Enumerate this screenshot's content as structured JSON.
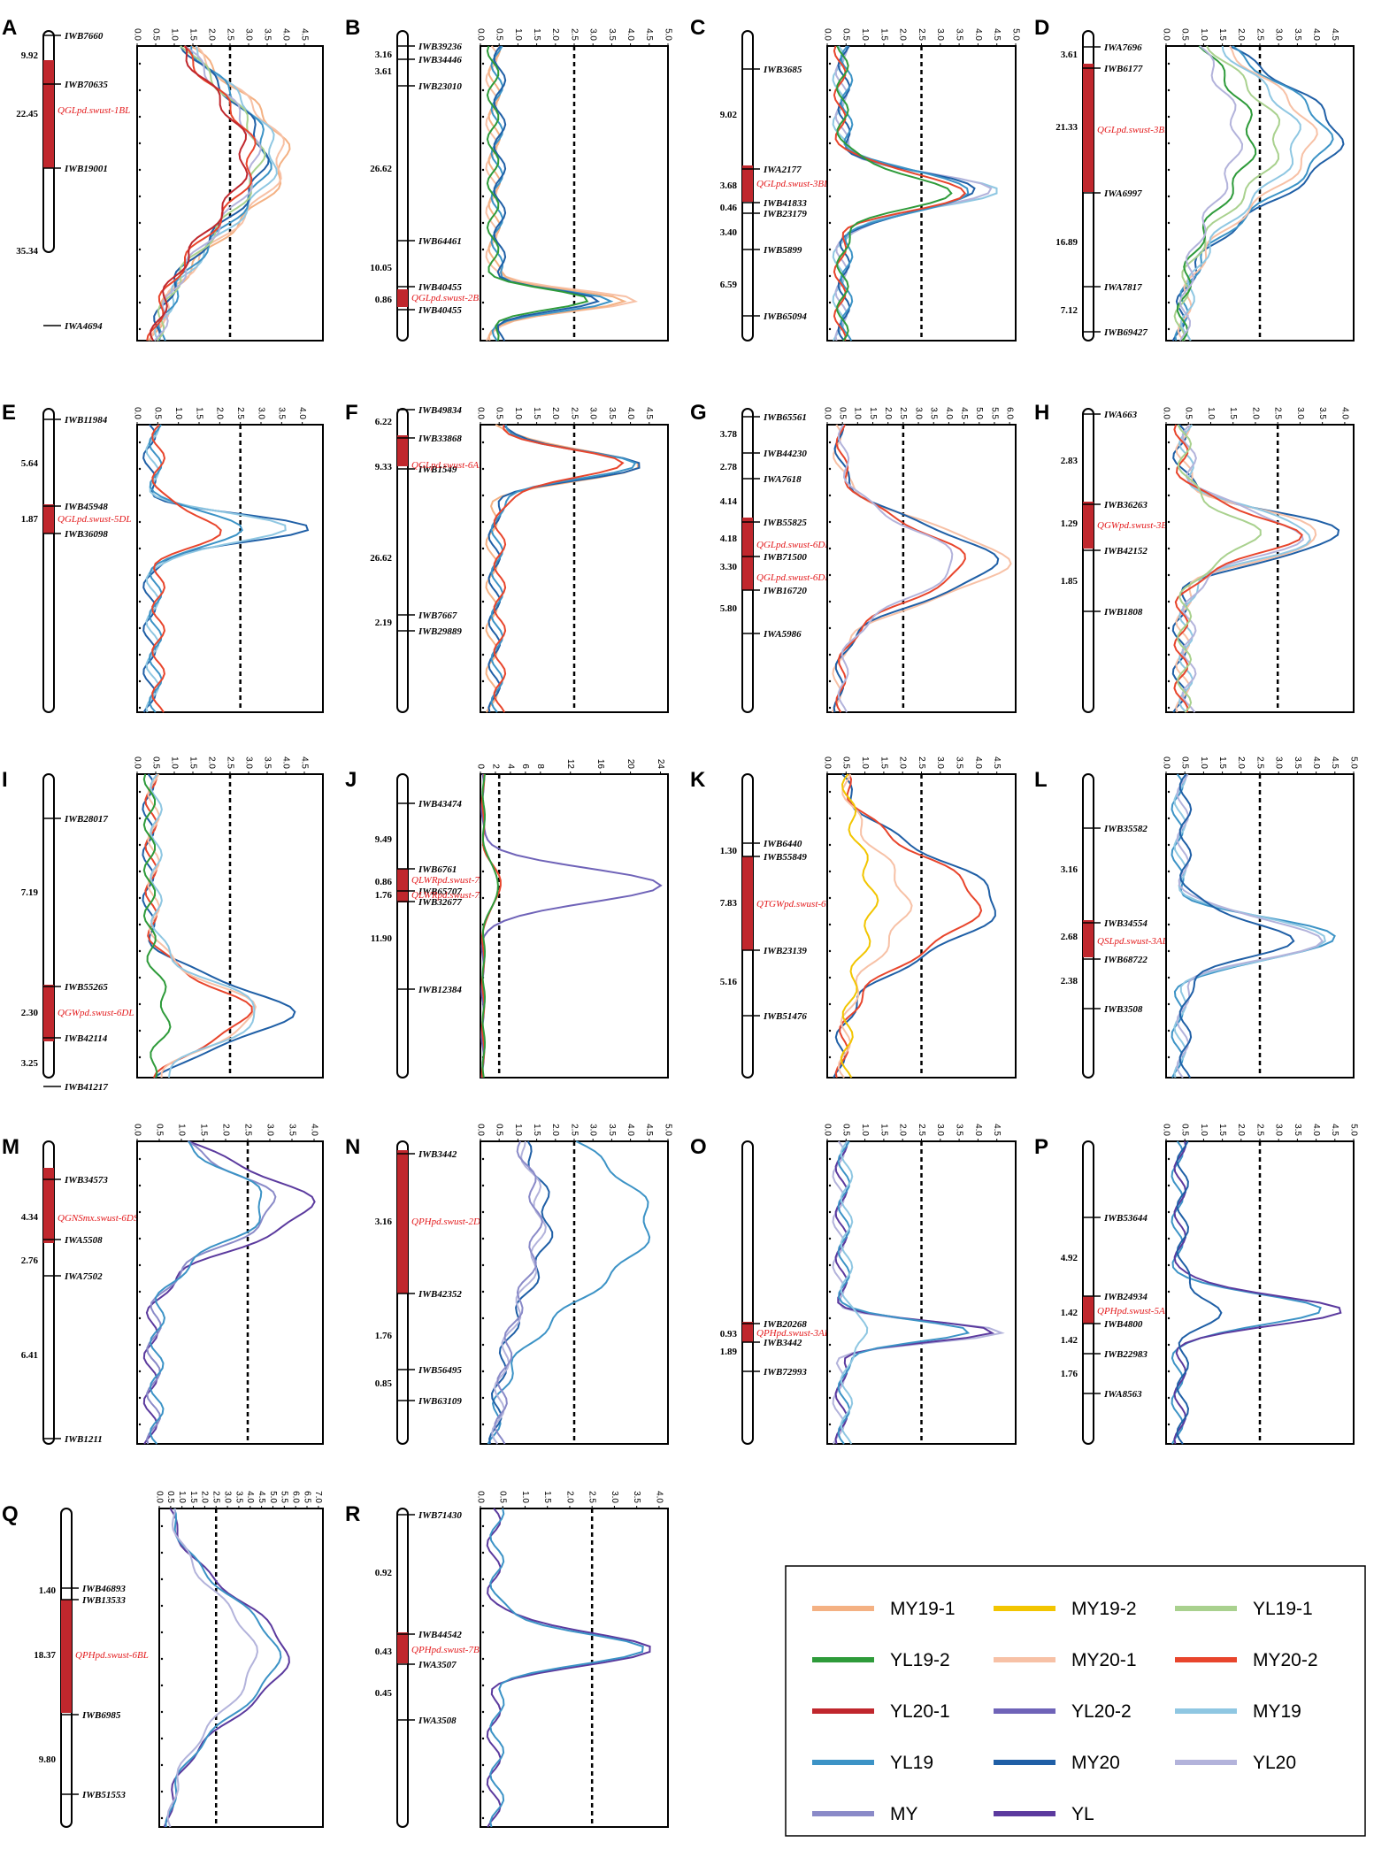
{
  "colors": {
    "MY19-1": "#f4b183",
    "MY19-2": "#f2c500",
    "YL19-1": "#a9d18e",
    "YL19-2": "#2e9b3a",
    "MY20-1": "#f7c1a6",
    "MY20-2": "#e8452c",
    "YL20-1": "#c0272d",
    "YL20-2": "#6f63b8",
    "MY19": "#8fc7e2",
    "YL19": "#3c93c6",
    "MY20": "#1f5fa6",
    "YL20": "#b3b3db",
    "MY": "#8a8ac8",
    "YL": "#5b3a9e",
    "qtl_bar": "#c0272d",
    "threshold": "#000000"
  },
  "legend": {
    "items": [
      "MY19-1",
      "MY19-2",
      "YL19-1",
      "YL19-2",
      "MY20-1",
      "MY20-2",
      "YL20-1",
      "YL20-2",
      "MY19",
      "YL19",
      "MY20",
      "YL20",
      "MY",
      "YL"
    ]
  },
  "chart_data": [
    {
      "panel": "A",
      "type": "line",
      "xticks": [
        "0.0",
        "0.5",
        "1.0",
        "1.5",
        "2.0",
        "2.5",
        "3.0",
        "3.5",
        "4.0",
        "4.5"
      ],
      "xlim": [
        0,
        5
      ],
      "threshold": 2.5,
      "distances": [
        "9.92",
        "22.45",
        "35.34"
      ],
      "markers": [
        "IWB7660",
        "IWB70635",
        "IWB19001",
        "IWA4694"
      ],
      "qtl": [
        "QGLpd.swust-1BL"
      ],
      "series": [
        {
          "name": "MY19-1",
          "peak": 4.0
        },
        {
          "name": "MY20-1",
          "peak": 3.9
        },
        {
          "name": "MY19",
          "peak": 3.7
        },
        {
          "name": "YL19",
          "peak": 3.5
        },
        {
          "name": "MY20",
          "peak": 3.4
        },
        {
          "name": "YL19-1",
          "peak": 3.3
        },
        {
          "name": "YL20",
          "peak": 3.2
        },
        {
          "name": "MY20-2",
          "peak": 3.1
        },
        {
          "name": "YL20-1",
          "peak": 2.9
        }
      ]
    },
    {
      "panel": "B",
      "type": "line",
      "xticks": [
        "0.0",
        "0.5",
        "1.0",
        "1.5",
        "2.0",
        "2.5",
        "3.0",
        "3.5",
        "4.0",
        "4.5",
        "5.0"
      ],
      "xlim": [
        0,
        5
      ],
      "threshold": 2.5,
      "distances": [
        "3.16",
        "3.61",
        "26.62",
        "10.05",
        "0.86"
      ],
      "markers": [
        "IWB39236",
        "IWB34446",
        "IWB23010",
        "IWB64461",
        "IWB40455",
        "IWB40455"
      ],
      "qtl": [
        "QGLpd.swust-2BL"
      ],
      "series": [
        {
          "name": "MY20-1",
          "peak": 4.3
        },
        {
          "name": "MY19-1",
          "peak": 3.9
        },
        {
          "name": "YL19",
          "peak": 3.4
        },
        {
          "name": "MY20",
          "peak": 3.0
        },
        {
          "name": "YL19-2",
          "peak": 2.8
        }
      ]
    },
    {
      "panel": "C",
      "type": "line",
      "xticks": [
        "0.0",
        "0.5",
        "1.0",
        "1.5",
        "2.0",
        "2.5",
        "3.0",
        "3.5",
        "4.0",
        "4.5",
        "5.0"
      ],
      "xlim": [
        0,
        5
      ],
      "threshold": 2.5,
      "distances": [
        "9.02",
        "3.68",
        "0.46",
        "3.40",
        "6.59"
      ],
      "markers": [
        "IWB3685",
        "IWA2177",
        "IWB41833",
        "IWB23179",
        "IWB5899",
        "IWB65094"
      ],
      "qtl": [
        "QGLpd.swust-3BL.1"
      ],
      "series": [
        {
          "name": "MY19",
          "peak": 4.4
        },
        {
          "name": "YL20",
          "peak": 4.3
        },
        {
          "name": "MY20",
          "peak": 4.0
        },
        {
          "name": "YL19",
          "peak": 3.9
        },
        {
          "name": "MY20-2",
          "peak": 3.7
        },
        {
          "name": "YL19-2",
          "peak": 3.2
        }
      ]
    },
    {
      "panel": "D",
      "type": "line",
      "xticks": [
        "0.0",
        "0.5",
        "1.0",
        "1.5",
        "2.0",
        "2.5",
        "3.0",
        "3.5",
        "4.0",
        "4.5"
      ],
      "xlim": [
        0,
        5
      ],
      "threshold": 2.5,
      "distances": [
        "3.61",
        "21.33",
        "16.89",
        "7.12"
      ],
      "markers": [
        "IWA7696",
        "IWB6177",
        "IWA6997",
        "IWA7817",
        "IWB69427"
      ],
      "qtl": [
        "QGLpd.swust-3BL.2"
      ],
      "series": [
        {
          "name": "MY20",
          "peak": 4.6
        },
        {
          "name": "YL19",
          "peak": 4.3
        },
        {
          "name": "MY20-1",
          "peak": 3.9
        },
        {
          "name": "MY19",
          "peak": 3.5
        },
        {
          "name": "YL19-1",
          "peak": 3.0
        },
        {
          "name": "YL19-2",
          "peak": 2.3
        },
        {
          "name": "YL20",
          "peak": 1.9
        }
      ]
    },
    {
      "panel": "E",
      "type": "line",
      "xticks": [
        "0.0",
        "0.5",
        "1.0",
        "1.5",
        "2.0",
        "2.5",
        "3.0",
        "3.5",
        "4.0"
      ],
      "xlim": [
        0,
        4.5
      ],
      "threshold": 2.5,
      "distances": [
        "5.64",
        "1.87"
      ],
      "markers": [
        "IWB11984",
        "IWB45948",
        "IWB36098"
      ],
      "qtl": [
        "QGLpd.swust-5DL"
      ],
      "series": [
        {
          "name": "MY20",
          "peak": 4.1
        },
        {
          "name": "MY19",
          "peak": 3.7
        },
        {
          "name": "YL19",
          "peak": 2.7
        },
        {
          "name": "MY20-2",
          "peak": 2.1
        }
      ]
    },
    {
      "panel": "F",
      "type": "line",
      "xticks": [
        "0.0",
        "0.5",
        "1.0",
        "1.5",
        "2.0",
        "2.5",
        "3.0",
        "3.5",
        "4.0",
        "4.5"
      ],
      "xlim": [
        0,
        5
      ],
      "threshold": 2.5,
      "distances": [
        "6.22",
        "9.33",
        "26.62",
        "2.19"
      ],
      "markers": [
        "IWB49834",
        "IWB33868",
        "IWB1549",
        "IWB7667",
        "IWB29889"
      ],
      "qtl": [
        "QGLpd.swust-6AL"
      ],
      "series": [
        {
          "name": "MY19-1",
          "peak": 4.3
        },
        {
          "name": "MY20",
          "peak": 4.2
        },
        {
          "name": "YL19",
          "peak": 4.0
        },
        {
          "name": "MY20-2",
          "peak": 3.7
        }
      ]
    },
    {
      "panel": "G",
      "type": "line",
      "xticks": [
        "0.0",
        "0.5",
        "1.0",
        "1.5",
        "2.0",
        "2.5",
        "3.0",
        "3.5",
        "4.0",
        "4.5",
        "5.0",
        "5.5",
        "6.0"
      ],
      "xlim": [
        0,
        6.2
      ],
      "threshold": 2.5,
      "distances": [
        "3.78",
        "2.78",
        "4.14",
        "4.18",
        "3.30",
        "5.80"
      ],
      "markers": [
        "IWB65561",
        "IWB44230",
        "IWA7618",
        "IWB55825",
        "IWB71500",
        "IWB16720",
        "IWA5986"
      ],
      "qtl": [
        "QGLpd.swust-6DL.1",
        "QGLpd.swust-6DL.2"
      ],
      "series": [
        {
          "name": "MY20-1",
          "peak": 5.9
        },
        {
          "name": "MY20",
          "peak": 5.5
        },
        {
          "name": "MY20-2",
          "peak": 4.5
        },
        {
          "name": "YL20",
          "peak": 4.2
        }
      ]
    },
    {
      "panel": "H",
      "type": "line",
      "xticks": [
        "0.0",
        "0.5",
        "1.0",
        "1.5",
        "2.0",
        "2.5",
        "3.0",
        "3.5",
        "4.0"
      ],
      "xlim": [
        0,
        4.2
      ],
      "threshold": 2.5,
      "distances": [
        "2.83",
        "1.29",
        "1.85"
      ],
      "markers": [
        "IWA663",
        "IWB36263",
        "IWB42152",
        "IWB1808"
      ],
      "qtl": [
        "QGWpd.swust-3BS"
      ],
      "series": [
        {
          "name": "MY20",
          "peak": 3.9
        },
        {
          "name": "MY20-1",
          "peak": 3.5
        },
        {
          "name": "MY19",
          "peak": 3.3
        },
        {
          "name": "YL20",
          "peak": 3.0
        },
        {
          "name": "MY20-2",
          "peak": 2.9
        },
        {
          "name": "YL19-1",
          "peak": 2.0
        }
      ]
    },
    {
      "panel": "I",
      "type": "line",
      "xticks": [
        "0.0",
        "0.5",
        "1.0",
        "1.5",
        "2.0",
        "2.5",
        "3.0",
        "3.5",
        "4.0",
        "4.5"
      ],
      "xlim": [
        0,
        5
      ],
      "threshold": 2.5,
      "distances": [
        "7.19",
        "2.30",
        "3.25"
      ],
      "markers": [
        "IWB28017",
        "IWB55265",
        "IWB42114",
        "IWB41217"
      ],
      "qtl": [
        "QGWpd.swust-6DL"
      ],
      "series": [
        {
          "name": "MY20",
          "peak": 4.1
        },
        {
          "name": "MY20-2",
          "peak": 3.0
        },
        {
          "name": "MY20-1",
          "peak": 3.2
        },
        {
          "name": "MY19",
          "peak": 3.3
        },
        {
          "name": "YL19-2",
          "peak": 0.8
        }
      ]
    },
    {
      "panel": "J",
      "type": "line",
      "xticks": [
        "0",
        "2",
        "4",
        "6",
        "8",
        "12",
        "16",
        "20",
        "24"
      ],
      "xlim": [
        0,
        25
      ],
      "threshold": 2.5,
      "distances": [
        "9.49",
        "0.86",
        "1.76",
        "11.90"
      ],
      "markers": [
        "IWB43474",
        "IWB6761",
        "IWB65707",
        "IWB32677",
        "IWB12384"
      ],
      "qtl": [
        "QLWRpd.swust-7AS.1",
        "QLWRpd.swust-7AL.2"
      ],
      "series": [
        {
          "name": "YL20-2",
          "peak": 24.0
        },
        {
          "name": "MY20-2",
          "peak": 2.8
        },
        {
          "name": "YL19-2",
          "peak": 2.5
        }
      ]
    },
    {
      "panel": "K",
      "type": "line",
      "xticks": [
        "0.0",
        "0.5",
        "1.0",
        "1.5",
        "2.0",
        "2.5",
        "3.0",
        "3.5",
        "4.0",
        "4.5"
      ],
      "xlim": [
        0,
        5
      ],
      "threshold": 2.5,
      "distances": [
        "1.30",
        "7.83",
        "5.16"
      ],
      "markers": [
        "IWB6440",
        "IWB55849",
        "IWB23139",
        "IWB51476"
      ],
      "qtl": [
        "QTGWpd.swust-6BS"
      ],
      "series": [
        {
          "name": "MY20",
          "peak": 4.5
        },
        {
          "name": "MY20-2",
          "peak": 4.0
        },
        {
          "name": "MY20-1",
          "peak": 2.1
        },
        {
          "name": "MY19-2",
          "peak": 1.2
        }
      ]
    },
    {
      "panel": "L",
      "type": "line",
      "xticks": [
        "0.0",
        "0.5",
        "1.0",
        "1.5",
        "2.0",
        "2.5",
        "3.0",
        "3.5",
        "4.0",
        "4.5",
        "5.0"
      ],
      "xlim": [
        0,
        5
      ],
      "threshold": 2.5,
      "distances": [
        "3.16",
        "2.68",
        "2.38"
      ],
      "markers": [
        "IWB35582",
        "IWB34554",
        "IWB68722",
        "IWB3508"
      ],
      "qtl": [
        "QSLpd.swust-3AL"
      ],
      "series": [
        {
          "name": "YL19",
          "peak": 4.6
        },
        {
          "name": "MY19",
          "peak": 4.4
        },
        {
          "name": "YL20",
          "peak": 4.2
        },
        {
          "name": "MY20",
          "peak": 3.3
        }
      ]
    },
    {
      "panel": "M",
      "type": "line",
      "xticks": [
        "0.0",
        "0.5",
        "1.0",
        "1.5",
        "2.0",
        "2.5",
        "3.0",
        "3.5",
        "4.0"
      ],
      "xlim": [
        0,
        4.2
      ],
      "threshold": 2.5,
      "distances": [
        "4.34",
        "2.76",
        "6.41"
      ],
      "markers": [
        "IWB34573",
        "IWA5508",
        "IWA7502",
        "IWB1211"
      ],
      "qtl": [
        "QGNSmx.swust-6DS"
      ],
      "series": [
        {
          "name": "YL",
          "peak": 3.9
        },
        {
          "name": "MY",
          "peak": 3.1
        },
        {
          "name": "YL19",
          "peak": 2.9
        }
      ]
    },
    {
      "panel": "N",
      "type": "line",
      "xticks": [
        "0.0",
        "0.5",
        "1.0",
        "1.5",
        "2.0",
        "2.5",
        "3.0",
        "3.5",
        "4.0",
        "4.5",
        "5.0"
      ],
      "xlim": [
        0,
        5
      ],
      "threshold": 2.5,
      "distances": [
        "3.16",
        "1.76",
        "0.85"
      ],
      "markers": [
        "IWB3442",
        "IWB42352",
        "IWB56495",
        "IWB63109"
      ],
      "qtl": [
        "QPHpd.swust-2DL"
      ],
      "series": [
        {
          "name": "YL19",
          "peak": 4.5
        },
        {
          "name": "MY20",
          "peak": 1.8
        },
        {
          "name": "YL20",
          "peak": 1.6
        },
        {
          "name": "MY",
          "peak": 1.5
        }
      ]
    },
    {
      "panel": "O",
      "type": "line",
      "xticks": [
        "0.0",
        "0.5",
        "1.0",
        "1.5",
        "2.0",
        "2.5",
        "3.0",
        "3.5",
        "4.0",
        "4.5"
      ],
      "xlim": [
        0,
        5
      ],
      "threshold": 2.5,
      "distances": [
        "0.93",
        "1.89"
      ],
      "markers": [
        "IWB20268",
        "IWB3442",
        "IWB72993"
      ],
      "qtl": [
        "QPHpd.swust-3AL"
      ],
      "series": [
        {
          "name": "YL20",
          "peak": 4.5
        },
        {
          "name": "YL",
          "peak": 4.3
        },
        {
          "name": "YL19",
          "peak": 3.8
        },
        {
          "name": "MY19",
          "peak": 1.2
        }
      ]
    },
    {
      "panel": "P",
      "type": "line",
      "xticks": [
        "0.0",
        "0.5",
        "1.0",
        "1.5",
        "2.0",
        "2.5",
        "3.0",
        "3.5",
        "4.0",
        "4.5",
        "5.0"
      ],
      "xlim": [
        0,
        5
      ],
      "threshold": 2.5,
      "distances": [
        "4.92",
        "1.42",
        "1.42",
        "1.76"
      ],
      "markers": [
        "IWB53644",
        "IWB24934",
        "IWB4800",
        "IWB22983",
        "IWA8563"
      ],
      "qtl": [
        "QPHpd.swust-5AL"
      ],
      "series": [
        {
          "name": "YL19",
          "peak": 4.3
        },
        {
          "name": "YL",
          "peak": 4.8
        },
        {
          "name": "MY20",
          "peak": 1.4
        }
      ]
    },
    {
      "panel": "Q",
      "type": "line",
      "xticks": [
        "0.0",
        "0.5",
        "1.0",
        "1.5",
        "2.0",
        "2.5",
        "3.0",
        "3.5",
        "4.0",
        "4.5",
        "5.0",
        "5.5",
        "6.0",
        "6.5",
        "7.0"
      ],
      "xlim": [
        0,
        7.2
      ],
      "threshold": 2.5,
      "distances": [
        "1.40",
        "18.37",
        "9.80"
      ],
      "markers": [
        "IWB46893",
        "IWB13533",
        "IWB6985",
        "IWB51553"
      ],
      "qtl": [
        "QPHpd.swust-6BL"
      ],
      "series": [
        {
          "name": "YL",
          "peak": 5.6
        },
        {
          "name": "YL19",
          "peak": 5.2
        },
        {
          "name": "YL20",
          "peak": 4.2
        }
      ]
    },
    {
      "panel": "R",
      "type": "line",
      "xticks": [
        "0.0",
        "0.5",
        "1.0",
        "1.5",
        "2.0",
        "2.5",
        "3.0",
        "3.5",
        "4.0"
      ],
      "xlim": [
        0,
        4.2
      ],
      "threshold": 2.5,
      "distances": [
        "0.92",
        "0.43",
        "0.45"
      ],
      "markers": [
        "IWB71430",
        "IWB44542",
        "IWA3507",
        "IWA3508"
      ],
      "qtl": [
        "QPHpd.swust-7BS"
      ],
      "series": [
        {
          "name": "YL",
          "peak": 3.9
        },
        {
          "name": "YL19",
          "peak": 3.6
        }
      ]
    }
  ]
}
